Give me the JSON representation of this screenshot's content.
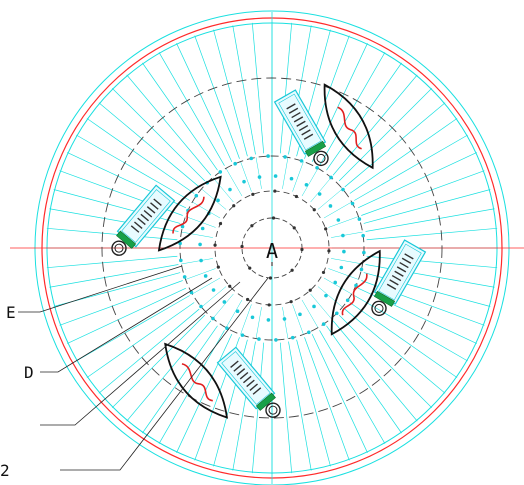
{
  "diagram": {
    "center_label": "A",
    "leaders": [
      {
        "id": "E",
        "text": "E"
      },
      {
        "id": "D",
        "text": "D"
      },
      {
        "id": "blank",
        "text": ""
      },
      {
        "id": "bottom",
        "text": "2"
      }
    ]
  },
  "colors": {
    "background": "#ffffff",
    "outer_ring": "#ff2a2a",
    "cyan": "#19e0e0",
    "dark": "#111111",
    "dashed": "#444444",
    "lamp_red": "#e02020",
    "device_green": "#18a048"
  }
}
